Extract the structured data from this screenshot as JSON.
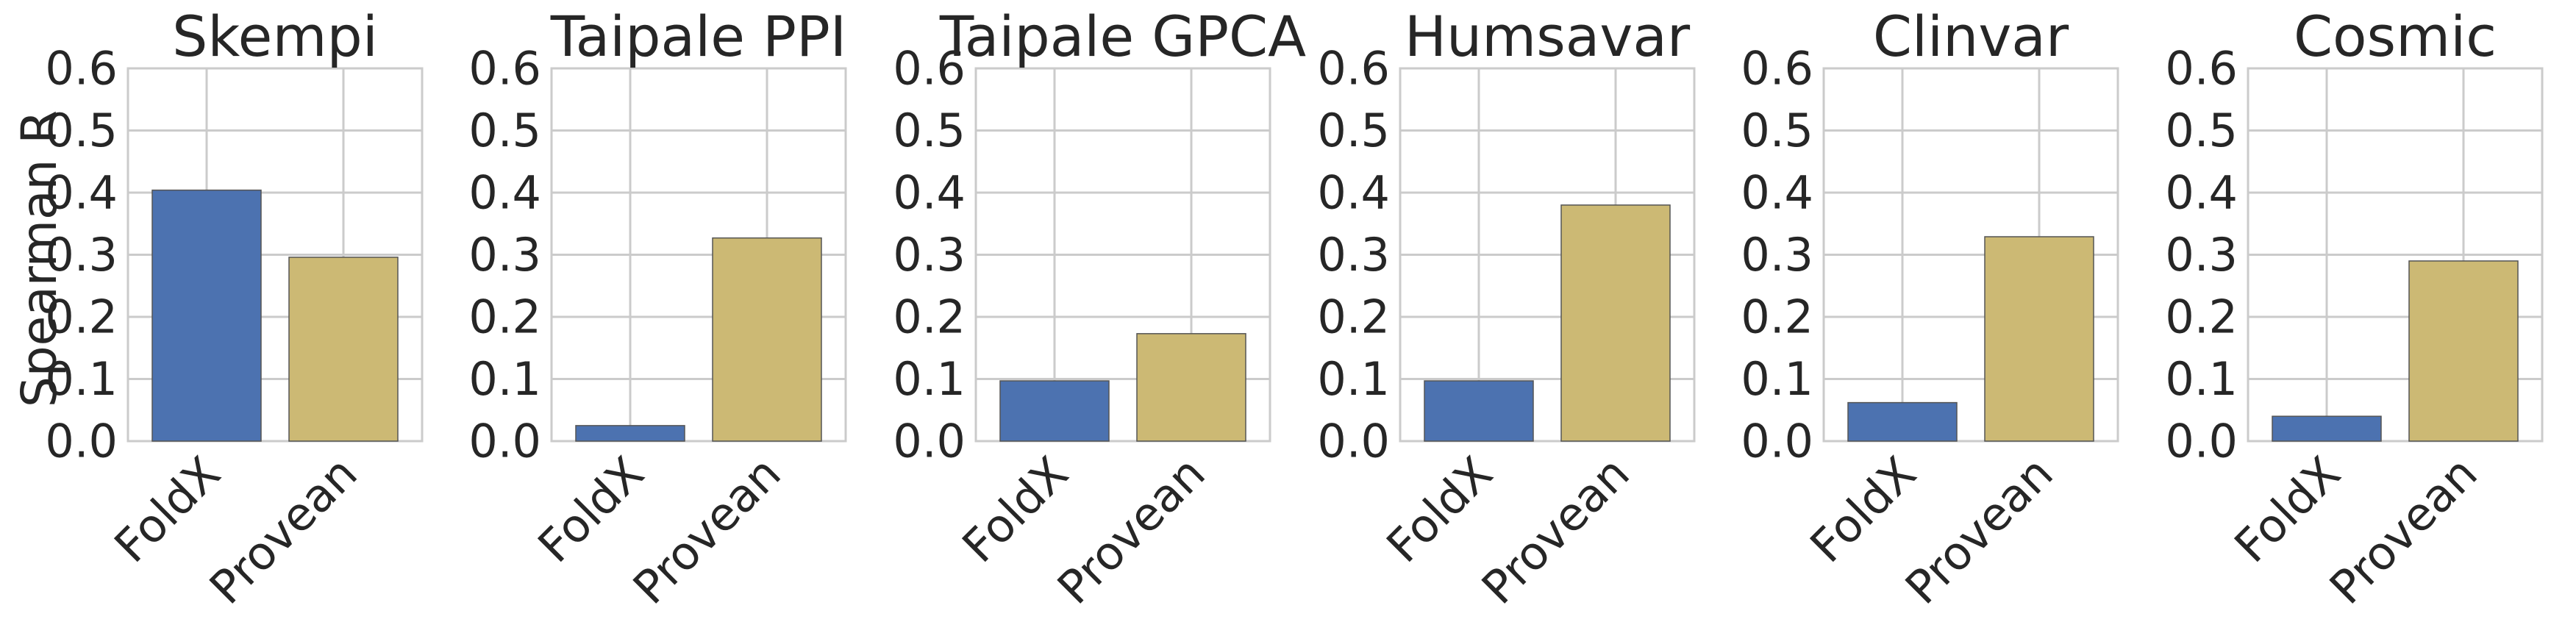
{
  "figure": {
    "ylabel": "Spearman R",
    "colors": {
      "FoldX": "#4c72b0",
      "Provean": "#ccb974",
      "grid": "#cbcbcb",
      "frame": "#cbcbcb",
      "bar_edge": "#555555"
    }
  },
  "chart_data": [
    {
      "type": "bar",
      "title": "Skempi",
      "categories": [
        "FoldX",
        "Provean"
      ],
      "values": [
        0.404,
        0.296
      ],
      "ylabel": "Spearman R",
      "ylim": [
        0,
        0.6
      ],
      "yticks": [
        "0.0",
        "0.1",
        "0.2",
        "0.3",
        "0.4",
        "0.5",
        "0.6"
      ],
      "grid": true
    },
    {
      "type": "bar",
      "title": "Taipale PPI",
      "categories": [
        "FoldX",
        "Provean"
      ],
      "values": [
        0.025,
        0.327
      ],
      "ylim": [
        0,
        0.6
      ],
      "yticks": [
        "0.0",
        "0.1",
        "0.2",
        "0.3",
        "0.4",
        "0.5",
        "0.6"
      ],
      "grid": true
    },
    {
      "type": "bar",
      "title": "Taipale GPCA",
      "categories": [
        "FoldX",
        "Provean"
      ],
      "values": [
        0.097,
        0.173
      ],
      "ylim": [
        0,
        0.6
      ],
      "yticks": [
        "0.0",
        "0.1",
        "0.2",
        "0.3",
        "0.4",
        "0.5",
        "0.6"
      ],
      "grid": true
    },
    {
      "type": "bar",
      "title": "Humsavar",
      "categories": [
        "FoldX",
        "Provean"
      ],
      "values": [
        0.097,
        0.38
      ],
      "ylim": [
        0,
        0.6
      ],
      "yticks": [
        "0.0",
        "0.1",
        "0.2",
        "0.3",
        "0.4",
        "0.5",
        "0.6"
      ],
      "grid": true
    },
    {
      "type": "bar",
      "title": "Clinvar",
      "categories": [
        "FoldX",
        "Provean"
      ],
      "values": [
        0.062,
        0.329
      ],
      "ylim": [
        0,
        0.6
      ],
      "yticks": [
        "0.0",
        "0.1",
        "0.2",
        "0.3",
        "0.4",
        "0.5",
        "0.6"
      ],
      "grid": true
    },
    {
      "type": "bar",
      "title": "Cosmic",
      "categories": [
        "FoldX",
        "Provean"
      ],
      "values": [
        0.04,
        0.29
      ],
      "ylim": [
        0,
        0.6
      ],
      "yticks": [
        "0.0",
        "0.1",
        "0.2",
        "0.3",
        "0.4",
        "0.5",
        "0.6"
      ],
      "grid": true
    }
  ]
}
